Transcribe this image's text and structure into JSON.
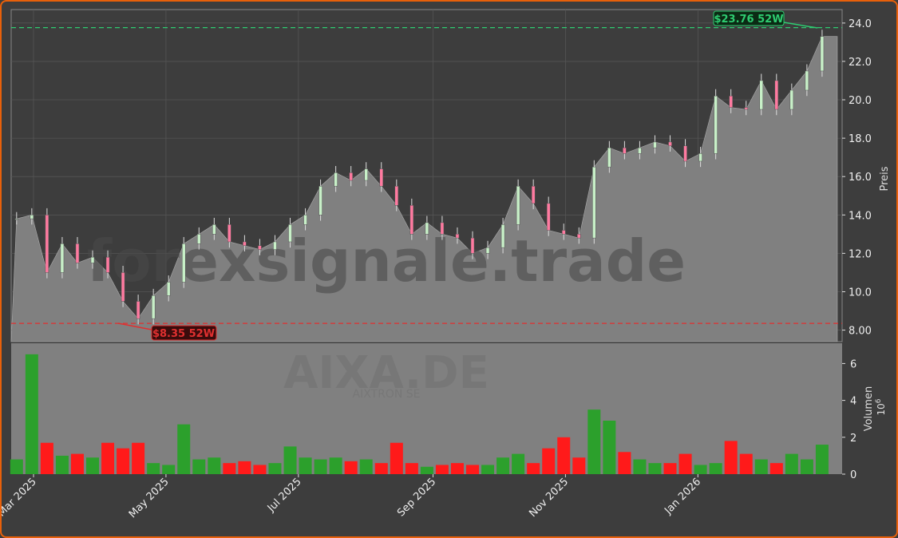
{
  "chart_data": {
    "type": "candlestick",
    "watermark": "forexsignale.trade",
    "ticker": "AIXA.DE",
    "company": "AIXTRON SE",
    "ylabel": "Preis",
    "volume_label": "Volumen",
    "volume_unit": "10^6",
    "ylim": [
      7.4,
      24.7
    ],
    "yticks": [
      "8.00",
      "10.0",
      "12.0",
      "14.0",
      "16.0",
      "18.0",
      "20.0",
      "22.0",
      "24.0"
    ],
    "volume_ylim": [
      0,
      7.1
    ],
    "volume_ticks": [
      "0",
      "2",
      "4",
      "6"
    ],
    "xticks": [
      {
        "label": "Mar 2025",
        "date": "2025-03-01"
      },
      {
        "label": "May 2025",
        "date": "2025-05-01"
      },
      {
        "label": "Jul 2025",
        "date": "2025-07-01"
      },
      {
        "label": "Sep 2025",
        "date": "2025-09-01"
      },
      {
        "label": "Nov 2025",
        "date": "2025-11-01"
      },
      {
        "label": "Jan 2026",
        "date": "2026-01-01"
      }
    ],
    "high_52w": {
      "value": 23.76,
      "label": "$23.76 52W",
      "color": "#2ecc71"
    },
    "low_52w": {
      "value": 8.35,
      "label": "$8.35 52W",
      "color": "#e03030"
    },
    "start_date": "2025-02-19",
    "interval_days": 7,
    "close": [
      13.8,
      14.0,
      11.0,
      12.5,
      11.5,
      11.8,
      11.0,
      9.5,
      8.6,
      9.8,
      10.5,
      12.5,
      13.0,
      13.5,
      12.6,
      12.4,
      12.2,
      12.6,
      13.5,
      14.0,
      15.5,
      16.2,
      15.8,
      16.4,
      15.5,
      14.5,
      13.0,
      13.6,
      13.0,
      12.8,
      12.0,
      12.3,
      13.5,
      15.5,
      14.6,
      13.2,
      13.0,
      12.8,
      16.5,
      17.5,
      17.2,
      17.5,
      17.8,
      17.6,
      16.8,
      17.2,
      20.2,
      19.6,
      19.5,
      21.0,
      19.5,
      20.5,
      21.5,
      23.3
    ],
    "volume": [
      0.8,
      6.5,
      1.7,
      1.0,
      1.1,
      0.9,
      1.7,
      1.4,
      1.7,
      0.6,
      0.5,
      2.7,
      0.8,
      0.9,
      0.6,
      0.7,
      0.5,
      0.6,
      1.5,
      0.9,
      0.8,
      0.9,
      0.7,
      0.8,
      0.6,
      1.7,
      0.6,
      0.4,
      0.5,
      0.6,
      0.5,
      0.5,
      0.9,
      1.1,
      0.6,
      1.4,
      2.0,
      0.9,
      3.5,
      2.9,
      1.2,
      0.8,
      0.6,
      0.6,
      1.1,
      0.5,
      0.6,
      1.8,
      1.1,
      0.8,
      0.6,
      1.1,
      0.8,
      1.6
    ],
    "colors": {
      "up": "#2ca02c",
      "down": "#ff1a1a",
      "candle_up": "#c8f0c8",
      "candle_down": "#ff7aa0",
      "area": "#808080",
      "background": "#3d3d3d",
      "border": "#e8600a"
    }
  }
}
